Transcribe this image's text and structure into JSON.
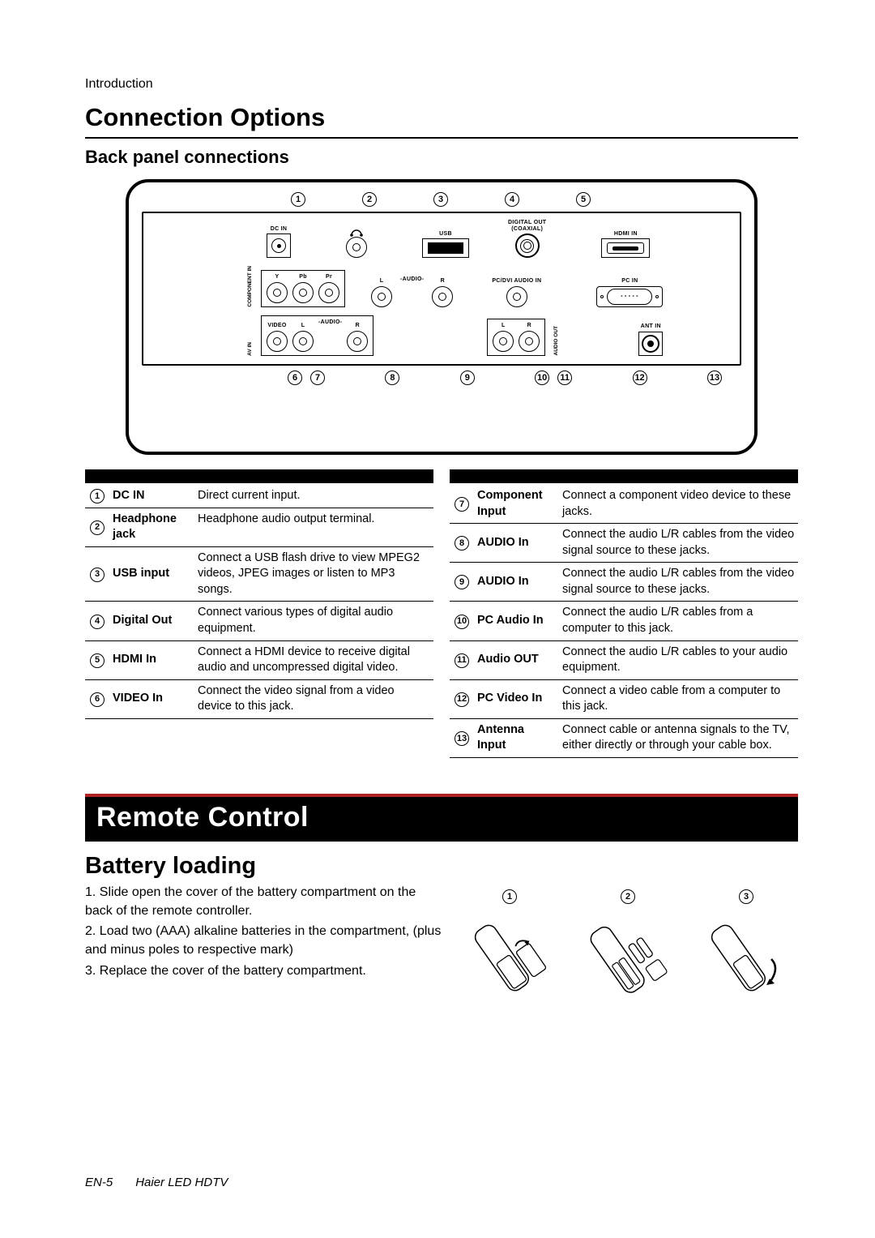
{
  "header_label": "Introduction",
  "title": "Connection Options",
  "subtitle": "Back panel connections",
  "panel": {
    "top_numbers": [
      "1",
      "2",
      "3",
      "4",
      "5"
    ],
    "bottom_numbers": [
      "6",
      "7",
      "8",
      "9",
      "10",
      "11",
      "12",
      "13"
    ],
    "row1": {
      "dc_label": "DC IN",
      "hp_icon": "headphone",
      "usb_label": "USB",
      "digital_label_a": "DIGITAL OUT",
      "digital_label_b": "(COAXIAL)",
      "hdmi_label": "HDMI IN"
    },
    "row2": {
      "component_v": "COMPONENT IN",
      "y": "Y",
      "pb": "Pb",
      "pr": "Pr",
      "l": "L",
      "audio": "-AUDIO-",
      "r": "R",
      "pc_audio": "PC/DVI AUDIO IN",
      "pc_in": "PC IN"
    },
    "row3": {
      "av_v": "AV IN",
      "video": "VIDEO",
      "l": "L",
      "audio": "-AUDIO-",
      "r": "R",
      "lr_l": "L",
      "lr_r": "R",
      "audio_out_v": "AUDIO OUT",
      "ant": "ANT IN"
    }
  },
  "conn_left": [
    {
      "n": "1",
      "name": "DC IN",
      "desc": "Direct current input."
    },
    {
      "n": "2",
      "name": "Headphone jack",
      "desc": "Headphone audio output terminal."
    },
    {
      "n": "3",
      "name": "USB input",
      "desc": "Connect a USB flash drive to view MPEG2 videos, JPEG images or listen to MP3 songs."
    },
    {
      "n": "4",
      "name": "Digital Out",
      "desc": "Connect various types of digital audio equipment."
    },
    {
      "n": "5",
      "name": "HDMI In",
      "desc": "Connect a HDMI device to receive digital audio and uncompressed digital video."
    },
    {
      "n": "6",
      "name": "VIDEO In",
      "desc": "Connect the video signal from a video device to this jack."
    }
  ],
  "conn_right": [
    {
      "n": "7",
      "name": "Component Input",
      "desc": "Connect a component video device to these jacks."
    },
    {
      "n": "8",
      "name": "AUDIO In",
      "desc": "Connect the audio L/R cables from the video signal source to these jacks."
    },
    {
      "n": "9",
      "name": "AUDIO In",
      "desc": "Connect the audio L/R cables from the video signal source to these jacks."
    },
    {
      "n": "10",
      "name": "PC Audio In",
      "desc": "Connect the audio L/R cables from a computer to this jack."
    },
    {
      "n": "11",
      "name": "Audio OUT",
      "desc": "Connect the audio L/R cables to your audio equipment."
    },
    {
      "n": "12",
      "name": "PC Video In",
      "desc": "Connect a video cable from a computer to this jack."
    },
    {
      "n": "13",
      "name": "Antenna Input",
      "desc": "Connect cable or antenna signals to the TV, either directly or through your cable box."
    }
  ],
  "section_banner": "Remote Control",
  "battery_heading": "Battery loading",
  "battery_steps": [
    "1. Slide open the cover of the battery compartment on the back of the remote controller.",
    "2. Load two (AAA) alkaline batteries in the compartment, (plus and minus poles to respective mark)",
    "3. Replace the cover of the battery compartment."
  ],
  "remote_fig_numbers": [
    "1",
    "2",
    "3"
  ],
  "footer_page": "EN-5",
  "footer_text": "Haier LED HDTV"
}
